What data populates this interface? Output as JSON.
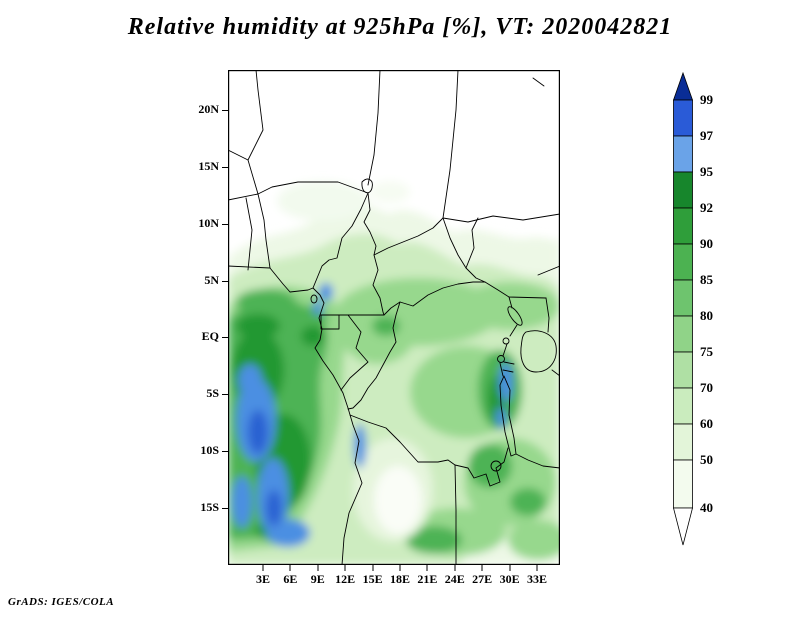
{
  "title": "Relative humidity at 925hPa [%], VT: 2020042821",
  "credit": "GrADS: IGES/COLA",
  "map": {
    "y_axis_labels": [
      "20N",
      "15N",
      "10N",
      "5N",
      "EQ",
      "5S",
      "10S",
      "15S"
    ],
    "x_axis_labels": [
      "3E",
      "6E",
      "9E",
      "12E",
      "15E",
      "18E",
      "21E",
      "24E",
      "27E",
      "30E",
      "33E"
    ]
  },
  "colorbar": {
    "labels": [
      "99",
      "97",
      "95",
      "92",
      "90",
      "85",
      "80",
      "75",
      "70",
      "60",
      "50",
      "40"
    ],
    "segment_colors_top_to_bottom": [
      "#0a2d96",
      "#2a5bd7",
      "#6aa3e8",
      "#17862c",
      "#2f9e3a",
      "#4cb251",
      "#6ec46e",
      "#90d388",
      "#afe0a4",
      "#caecbe",
      "#e3f5d9",
      "#f3fbee",
      "#ffffff"
    ]
  },
  "chart_data": {
    "type": "heatmap",
    "title": "Relative humidity at 925hPa [%], VT: 2020042821",
    "variable": "relative humidity",
    "units": "%",
    "level": "925hPa",
    "valid_time": "2020042821",
    "x_tick_labels": [
      "3E",
      "6E",
      "9E",
      "12E",
      "15E",
      "18E",
      "21E",
      "24E",
      "27E",
      "30E",
      "33E"
    ],
    "y_tick_labels": [
      "20N",
      "15N",
      "10N",
      "5N",
      "EQ",
      "5S",
      "10S",
      "15S"
    ],
    "shading_levels": [
      40,
      50,
      60,
      70,
      75,
      80,
      85,
      90,
      92,
      95,
      97,
      99
    ],
    "palette_low_to_high": [
      "#ffffff",
      "#f3fbee",
      "#e3f5d9",
      "#caecbe",
      "#afe0a4",
      "#90d388",
      "#6ec46e",
      "#4cb251",
      "#2f9e3a",
      "#17862c",
      "#6aa3e8",
      "#2a5bd7",
      "#0a2d96"
    ],
    "legend_position": "right",
    "annotation": "GrADS: IGES/COLA"
  }
}
